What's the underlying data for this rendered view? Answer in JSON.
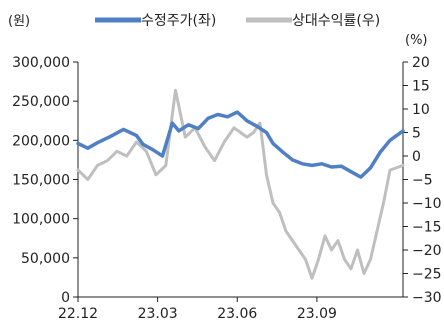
{
  "chart_data": {
    "type": "line",
    "left_unit": "(원)",
    "right_unit": "(%)",
    "x_ticks": [
      "22.12",
      "23.03",
      "23.06",
      "23.09"
    ],
    "y_left": {
      "min": 0,
      "max": 300000,
      "step": 50000,
      "ticks": [
        "0",
        "50,000",
        "100,000",
        "150,000",
        "200,000",
        "250,000",
        "300,000"
      ]
    },
    "y_right": {
      "min": -30,
      "max": 20,
      "step": 5,
      "ticks": [
        "20",
        "15",
        "10",
        "5",
        "0",
        "−5",
        "−10",
        "−15",
        "−20",
        "−25",
        "−30"
      ]
    },
    "grid": false,
    "legend_position": "top",
    "colors": {
      "price": "#4f7fc4",
      "relative": "#bfbfbf",
      "axis": "#222222"
    },
    "series": [
      {
        "name": "수정주가(좌)",
        "axis": "left",
        "color": "#4f7fc4",
        "x": [
          0,
          0.03,
          0.06,
          0.1,
          0.14,
          0.18,
          0.2,
          0.23,
          0.26,
          0.29,
          0.31,
          0.34,
          0.37,
          0.4,
          0.43,
          0.46,
          0.49,
          0.52,
          0.55,
          0.58,
          0.6,
          0.63,
          0.66,
          0.69,
          0.72,
          0.75,
          0.78,
          0.81,
          0.84,
          0.87,
          0.9,
          0.93,
          0.96,
          1.0
        ],
        "values": [
          196000,
          190000,
          197000,
          205000,
          214000,
          206000,
          195000,
          188000,
          180000,
          222000,
          212000,
          220000,
          215000,
          228000,
          233000,
          230000,
          236000,
          225000,
          218000,
          210000,
          196000,
          185000,
          175000,
          170000,
          168000,
          170000,
          166000,
          167000,
          160000,
          153000,
          165000,
          185000,
          200000,
          212000
        ]
      },
      {
        "name": "상대수익률(우)",
        "axis": "right",
        "color": "#bfbfbf",
        "x": [
          0,
          0.03,
          0.06,
          0.09,
          0.12,
          0.15,
          0.18,
          0.21,
          0.24,
          0.27,
          0.3,
          0.33,
          0.36,
          0.39,
          0.42,
          0.45,
          0.48,
          0.5,
          0.52,
          0.54,
          0.56,
          0.58,
          0.6,
          0.62,
          0.64,
          0.66,
          0.68,
          0.7,
          0.72,
          0.74,
          0.76,
          0.78,
          0.8,
          0.82,
          0.84,
          0.86,
          0.88,
          0.9,
          0.92,
          0.94,
          0.96,
          1.0
        ],
        "values": [
          -3,
          -5,
          -2,
          -1,
          1,
          0,
          3,
          1,
          -4,
          -2,
          14,
          4,
          6,
          2,
          -1,
          3,
          6,
          5,
          4,
          5,
          7,
          -4,
          -10,
          -12,
          -16,
          -18,
          -20,
          -22,
          -26,
          -22,
          -17,
          -20,
          -18,
          -22,
          -24,
          -20,
          -25,
          -22,
          -16,
          -10,
          -3,
          -2
        ]
      }
    ]
  }
}
